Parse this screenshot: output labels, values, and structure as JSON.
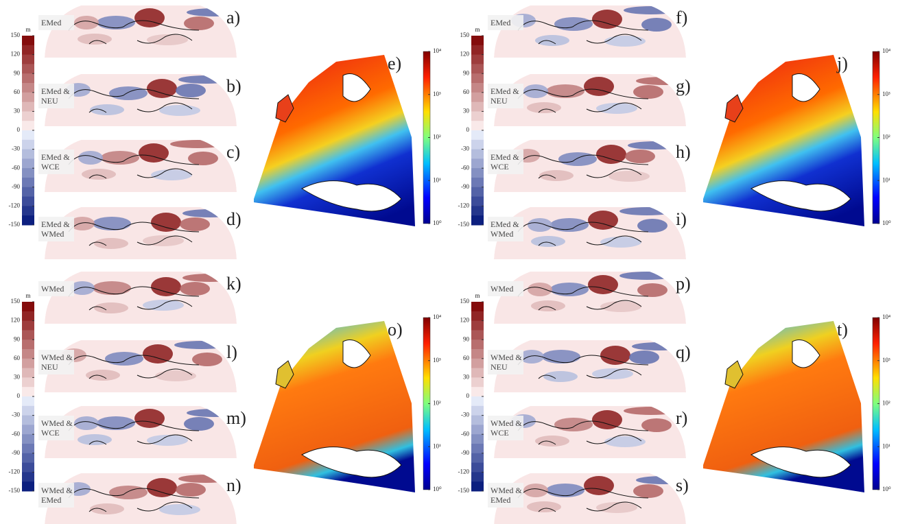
{
  "figure": {
    "quadrants": [
      {
        "colorbar": {
          "unit": "m",
          "lim": [
            -150,
            150
          ],
          "ticks": [
            150,
            120,
            90,
            60,
            30,
            0,
            -30,
            -60,
            -90,
            -120,
            -150
          ]
        },
        "panels": [
          {
            "letter": "a)",
            "label": [
              "EMed"
            ]
          },
          {
            "letter": "b)",
            "label": [
              "EMed &",
              "NEU"
            ]
          },
          {
            "letter": "c)",
            "label": [
              "EMed &",
              "WCE"
            ]
          },
          {
            "letter": "d)",
            "label": [
              "EMed &",
              "WMed"
            ]
          }
        ],
        "map": {
          "letter": "e)",
          "lim": [
            1,
            10000
          ],
          "ticks": [
            {
              "value": 10000,
              "label": "10⁴"
            },
            {
              "value": 1000,
              "label": "10³"
            },
            {
              "value": 100,
              "label": "10²"
            },
            {
              "value": 10,
              "label": "10¹"
            },
            {
              "value": 1,
              "label": "10⁰"
            }
          ]
        }
      },
      {
        "colorbar": {
          "unit": "m",
          "lim": [
            -150,
            150
          ],
          "ticks": [
            150,
            120,
            90,
            60,
            30,
            0,
            -30,
            -60,
            -90,
            -120,
            -150
          ]
        },
        "panels": [
          {
            "letter": "f)",
            "label": [
              "EMed"
            ]
          },
          {
            "letter": "g)",
            "label": [
              "EMed &",
              "NEU"
            ]
          },
          {
            "letter": "h)",
            "label": [
              "EMed &",
              "WCE"
            ]
          },
          {
            "letter": "i)",
            "label": [
              "EMed &",
              "WMed"
            ]
          }
        ],
        "map": {
          "letter": "j)",
          "lim": [
            1,
            10000
          ],
          "ticks": [
            {
              "value": 10000,
              "label": "10⁴"
            },
            {
              "value": 1000,
              "label": "10³"
            },
            {
              "value": 100,
              "label": "10²"
            },
            {
              "value": 10,
              "label": "10¹"
            },
            {
              "value": 1,
              "label": "10⁰"
            }
          ]
        }
      },
      {
        "colorbar": {
          "unit": "m",
          "lim": [
            -150,
            150
          ],
          "ticks": [
            150,
            120,
            90,
            60,
            30,
            0,
            -30,
            -60,
            -90,
            -120,
            -150
          ]
        },
        "panels": [
          {
            "letter": "k)",
            "label": [
              "WMed"
            ]
          },
          {
            "letter": "l)",
            "label": [
              "WMed &",
              "NEU"
            ]
          },
          {
            "letter": "m)",
            "label": [
              "WMed &",
              "WCE"
            ]
          },
          {
            "letter": "n)",
            "label": [
              "WMed &",
              "EMed"
            ]
          }
        ],
        "map": {
          "letter": "o)",
          "lim": [
            1,
            10000
          ],
          "ticks": [
            {
              "value": 10000,
              "label": "10⁴"
            },
            {
              "value": 1000,
              "label": "10³"
            },
            {
              "value": 100,
              "label": "10²"
            },
            {
              "value": 10,
              "label": "10¹"
            },
            {
              "value": 1,
              "label": "10⁰"
            }
          ]
        }
      },
      {
        "colorbar": {
          "unit": "m",
          "lim": [
            -150,
            150
          ],
          "ticks": [
            150,
            120,
            90,
            60,
            30,
            0,
            -30,
            -60,
            -90,
            -120,
            -150
          ]
        },
        "panels": [
          {
            "letter": "p)",
            "label": [
              "WMed"
            ]
          },
          {
            "letter": "q)",
            "label": [
              "WMed &",
              "NEU"
            ]
          },
          {
            "letter": "r)",
            "label": [
              "WMed &",
              "WCE"
            ]
          },
          {
            "letter": "s)",
            "label": [
              "WMed &",
              "EMed"
            ]
          }
        ],
        "map": {
          "letter": "t)",
          "lim": [
            1,
            10000
          ],
          "ticks": [
            {
              "value": 10000,
              "label": "10⁴"
            },
            {
              "value": 1000,
              "label": "10³"
            },
            {
              "value": 100,
              "label": "10²"
            },
            {
              "value": 10,
              "label": "10¹"
            },
            {
              "value": 1,
              "label": "10⁰"
            }
          ]
        }
      }
    ]
  }
}
